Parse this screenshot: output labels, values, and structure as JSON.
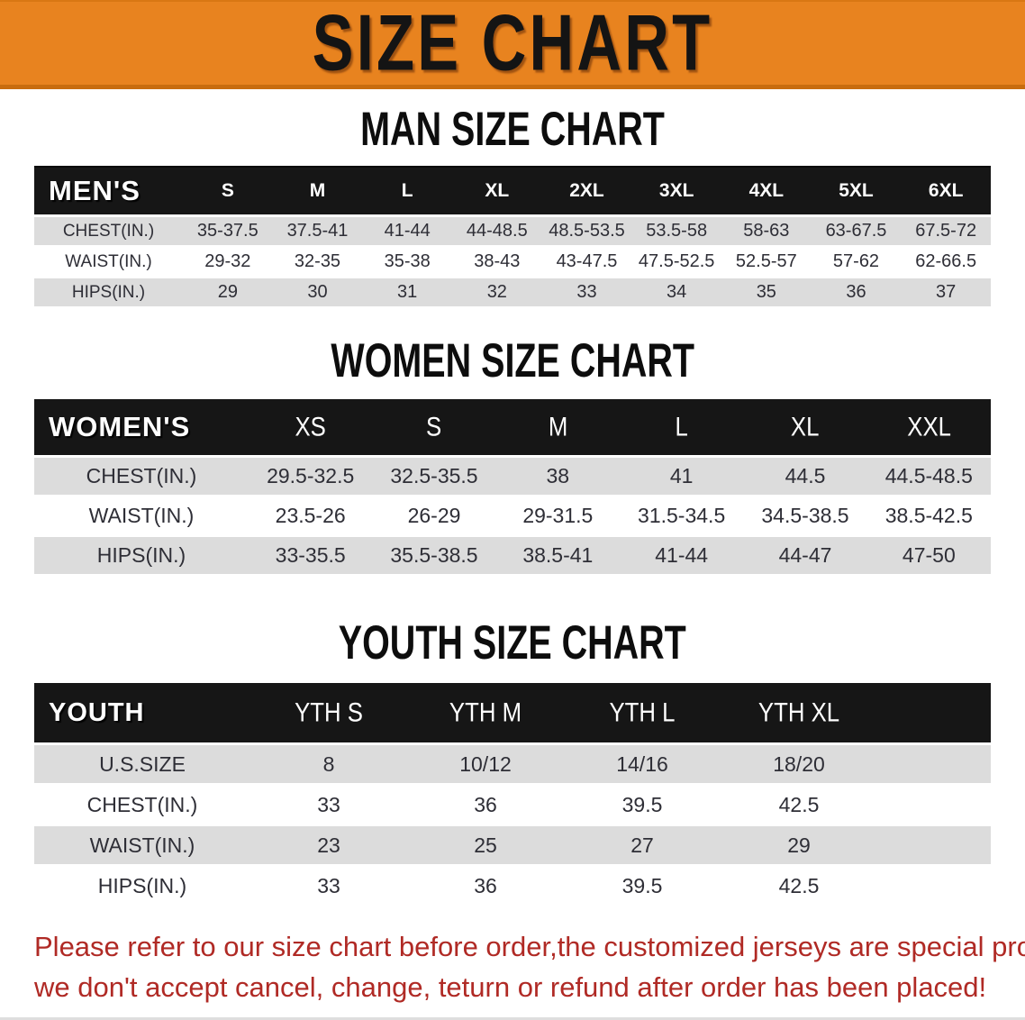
{
  "banner": {
    "title": "SIZE CHART",
    "bg_color": "#E8831F",
    "border_color": "#C86C0E",
    "title_color": "#141414"
  },
  "colors": {
    "header_band": "#161616",
    "row_gray": "#DCDCDC",
    "row_white": "#FFFFFF",
    "data_text": "#2E2E36",
    "disclaimer_red": "#B02A25"
  },
  "sections": [
    {
      "key": "men",
      "heading": "MAN SIZE CHART",
      "label": "MEN'S",
      "columns": [
        "S",
        "M",
        "L",
        "XL",
        "2XL",
        "3XL",
        "4XL",
        "5XL",
        "6XL"
      ],
      "rows": [
        {
          "label": "CHEST(IN.)",
          "values": [
            "35-37.5",
            "37.5-41",
            "41-44",
            "44-48.5",
            "48.5-53.5",
            "53.5-58",
            "58-63",
            "63-67.5",
            "67.5-72"
          ]
        },
        {
          "label": "WAIST(IN.)",
          "values": [
            "29-32",
            "32-35",
            "35-38",
            "38-43",
            "43-47.5",
            "47.5-52.5",
            "52.5-57",
            "57-62",
            "62-66.5"
          ]
        },
        {
          "label": "HIPS(IN.)",
          "values": [
            "29",
            "30",
            "31",
            "32",
            "33",
            "34",
            "35",
            "36",
            "37"
          ]
        }
      ]
    },
    {
      "key": "women",
      "heading": "WOMEN SIZE CHART",
      "label": "WOMEN'S",
      "columns": [
        "XS",
        "S",
        "M",
        "L",
        "XL",
        "XXL"
      ],
      "rows": [
        {
          "label": "CHEST(IN.)",
          "values": [
            "29.5-32.5",
            "32.5-35.5",
            "38",
            "41",
            "44.5",
            "44.5-48.5"
          ]
        },
        {
          "label": "WAIST(IN.)",
          "values": [
            "23.5-26",
            "26-29",
            "29-31.5",
            "31.5-34.5",
            "34.5-38.5",
            "38.5-42.5"
          ]
        },
        {
          "label": "HIPS(IN.)",
          "values": [
            "33-35.5",
            "35.5-38.5",
            "38.5-41",
            "41-44",
            "44-47",
            "47-50"
          ]
        }
      ]
    },
    {
      "key": "youth",
      "heading": "YOUTH SIZE CHART",
      "label": "YOUTH",
      "columns": [
        "YTH S",
        "YTH M",
        "YTH L",
        "YTH XL"
      ],
      "rows": [
        {
          "label": "U.S.SIZE",
          "values": [
            "8",
            "10/12",
            "14/16",
            "18/20"
          ]
        },
        {
          "label": "CHEST(IN.)",
          "values": [
            "33",
            "36",
            "39.5",
            "42.5"
          ]
        },
        {
          "label": "WAIST(IN.)",
          "values": [
            "23",
            "25",
            "27",
            "29"
          ]
        },
        {
          "label": "HIPS(IN.)",
          "values": [
            "33",
            "36",
            "39.5",
            "42.5"
          ]
        }
      ]
    }
  ],
  "disclaimer": {
    "line1": "Please refer to our size chart before order,the customized jerseys are special products,",
    "line2": "we don't accept cancel, change, teturn or refund after order has been placed!"
  }
}
